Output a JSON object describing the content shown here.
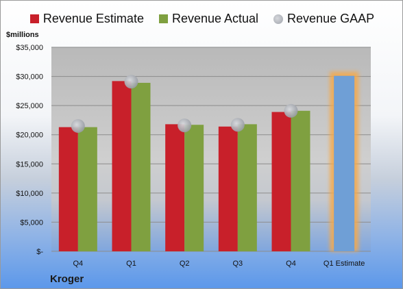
{
  "units_label": "$millions",
  "company_label": "Kroger",
  "legend": [
    {
      "label": "Revenue Estimate",
      "color": "#c8202a",
      "shape": "square"
    },
    {
      "label": "Revenue Actual",
      "color": "#7fa040",
      "shape": "square"
    },
    {
      "label": "Revenue GAAP",
      "color": "#b8bac0",
      "shape": "circle"
    }
  ],
  "chart_data": {
    "type": "bar",
    "categories": [
      "Q4",
      "Q1",
      "Q2",
      "Q3",
      "Q4",
      "Q1 Estimate"
    ],
    "ylim": [
      0,
      35000
    ],
    "yticks": [
      0,
      5000,
      10000,
      15000,
      20000,
      25000,
      30000,
      35000
    ],
    "ytick_labels": [
      "$-",
      "$5,000",
      "$10,000",
      "$15,000",
      "$20,000",
      "$25,000",
      "$30,000",
      "$35,000"
    ],
    "grid": true,
    "legend_position": "top",
    "series": [
      {
        "name": "Revenue Estimate",
        "color": "#c8202a",
        "values": [
          21300,
          29200,
          21800,
          21400,
          23900,
          null
        ]
      },
      {
        "name": "Revenue Actual",
        "color": "#7fa040",
        "values": [
          21300,
          28900,
          21700,
          21800,
          24100,
          null
        ]
      },
      {
        "name": "Revenue GAAP",
        "color": "#b8bac0",
        "marker": "circle",
        "values": [
          21500,
          29100,
          21600,
          21700,
          24100,
          null
        ]
      }
    ],
    "projection": {
      "category": "Q1 Estimate",
      "value": 30100,
      "color": "#6f9fd6",
      "highlight": "#f5a94a"
    }
  }
}
